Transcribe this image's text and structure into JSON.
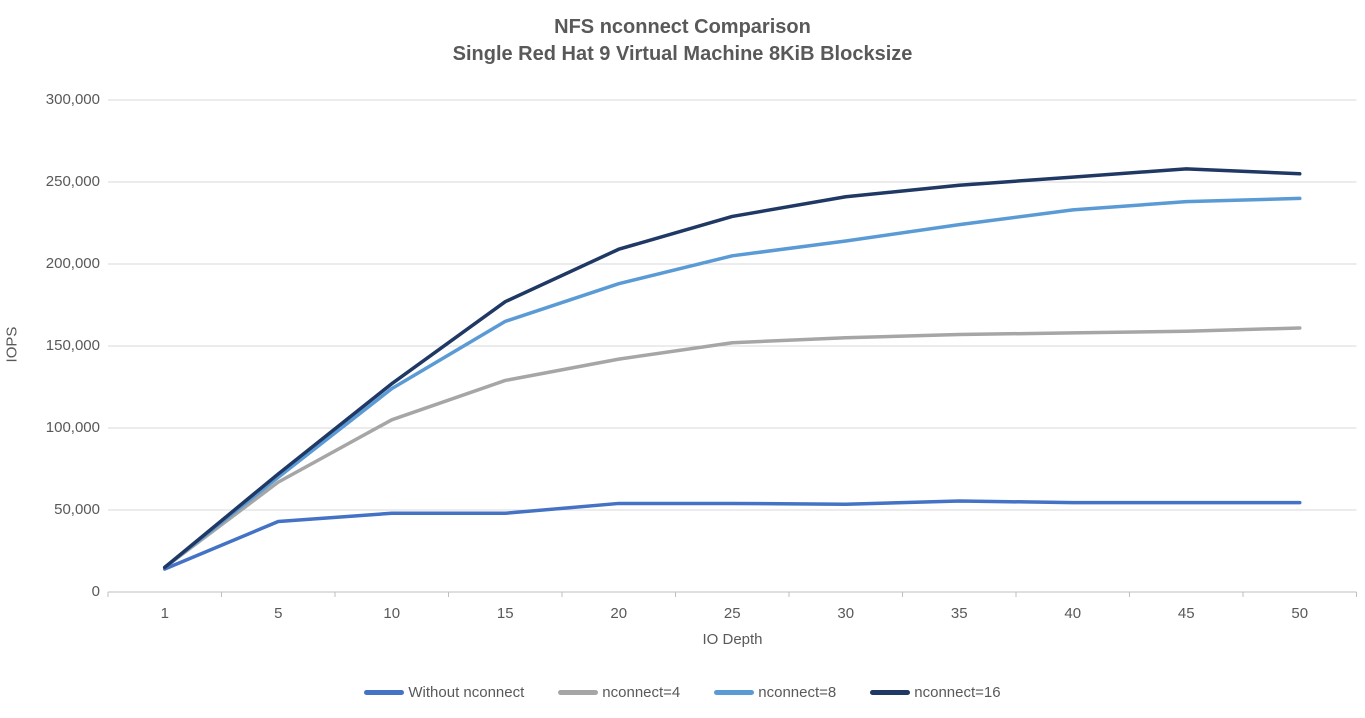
{
  "title": {
    "line1": "NFS nconnect Comparison",
    "line2": "Single Red Hat 9 Virtual Machine 8KiB Blocksize"
  },
  "chart_data": {
    "type": "line",
    "title": "NFS nconnect Comparison",
    "subtitle": "Single Red Hat 9 Virtual Machine 8KiB Blocksize",
    "xlabel": "IO Depth",
    "ylabel": "IOPS",
    "x": [
      1,
      5,
      10,
      15,
      20,
      25,
      30,
      35,
      40,
      45,
      50
    ],
    "x_labels": [
      "1",
      "5",
      "10",
      "15",
      "20",
      "25",
      "30",
      "35",
      "40",
      "45",
      "50"
    ],
    "ylim": [
      0,
      300000
    ],
    "ytick_values": [
      0,
      50000,
      100000,
      150000,
      200000,
      250000,
      300000
    ],
    "ytick_labels": [
      "0",
      "50,000",
      "100,000",
      "150,000",
      "200,000",
      "250,000",
      "300,000"
    ],
    "grid": "horizontal",
    "legend_position": "bottom-center",
    "series": [
      {
        "name": "Without nconnect",
        "color": "#4472C4",
        "values": [
          14000,
          43000,
          48000,
          48000,
          54000,
          54000,
          53500,
          55500,
          54500,
          54500,
          54500
        ]
      },
      {
        "name": "nconnect=4",
        "color": "#A6A6A6",
        "values": [
          15000,
          67000,
          105000,
          129000,
          142000,
          152000,
          155000,
          157000,
          158000,
          159000,
          161000
        ]
      },
      {
        "name": "nconnect=8",
        "color": "#5B9BD5",
        "values": [
          15000,
          70000,
          124000,
          165000,
          188000,
          205000,
          214000,
          224000,
          233000,
          238000,
          240000
        ]
      },
      {
        "name": "nconnect=16",
        "color": "#1F3864",
        "values": [
          15000,
          72000,
          127000,
          177000,
          209000,
          229000,
          241000,
          248000,
          253000,
          258000,
          255000
        ]
      }
    ],
    "colors": {
      "text": "#595959",
      "gridline": "#D9D9D9",
      "axis_line": "#BFBFBF",
      "background": "#FFFFFF"
    }
  }
}
